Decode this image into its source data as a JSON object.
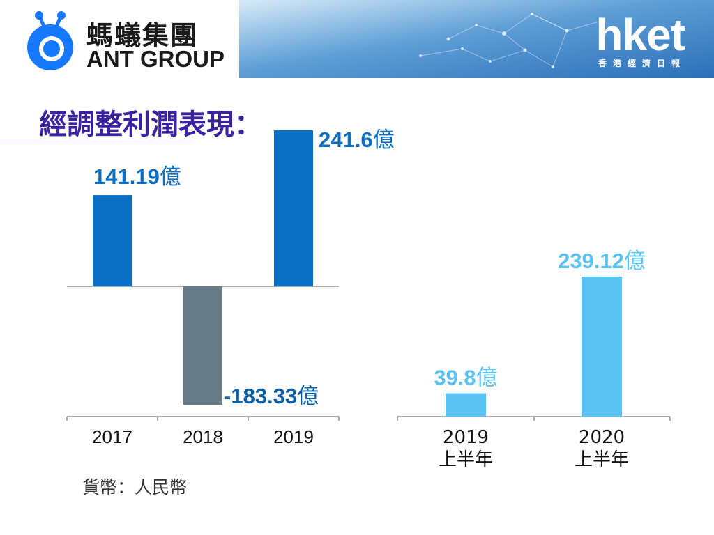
{
  "header": {
    "brand_cn": "螞蟻集團",
    "brand_en": "ANT GROUP",
    "media_logo": "hket",
    "media_subtitle": "香港經濟日報"
  },
  "title": "經調整利潤表現：",
  "currency_note": "貨幣：人民幣",
  "colors": {
    "annual_positive": "#0a6fc2",
    "annual_negative": "#667b86",
    "halfyear": "#5bc3f3",
    "title": "#3a22a0",
    "brand_blue": "#1677ff"
  },
  "chart_data": [
    {
      "type": "bar",
      "categories": [
        "2017",
        "2018",
        "2019"
      ],
      "values": [
        141.19,
        -183.33,
        241.6
      ],
      "data_labels": [
        "141.19億",
        "-183.33億",
        "241.6億"
      ]
    },
    {
      "type": "bar",
      "categories": [
        "2019\n上半年",
        "2020\n上半年"
      ],
      "values": [
        39.8,
        239.12
      ],
      "data_labels": [
        "39.8億",
        "239.12億"
      ]
    }
  ]
}
